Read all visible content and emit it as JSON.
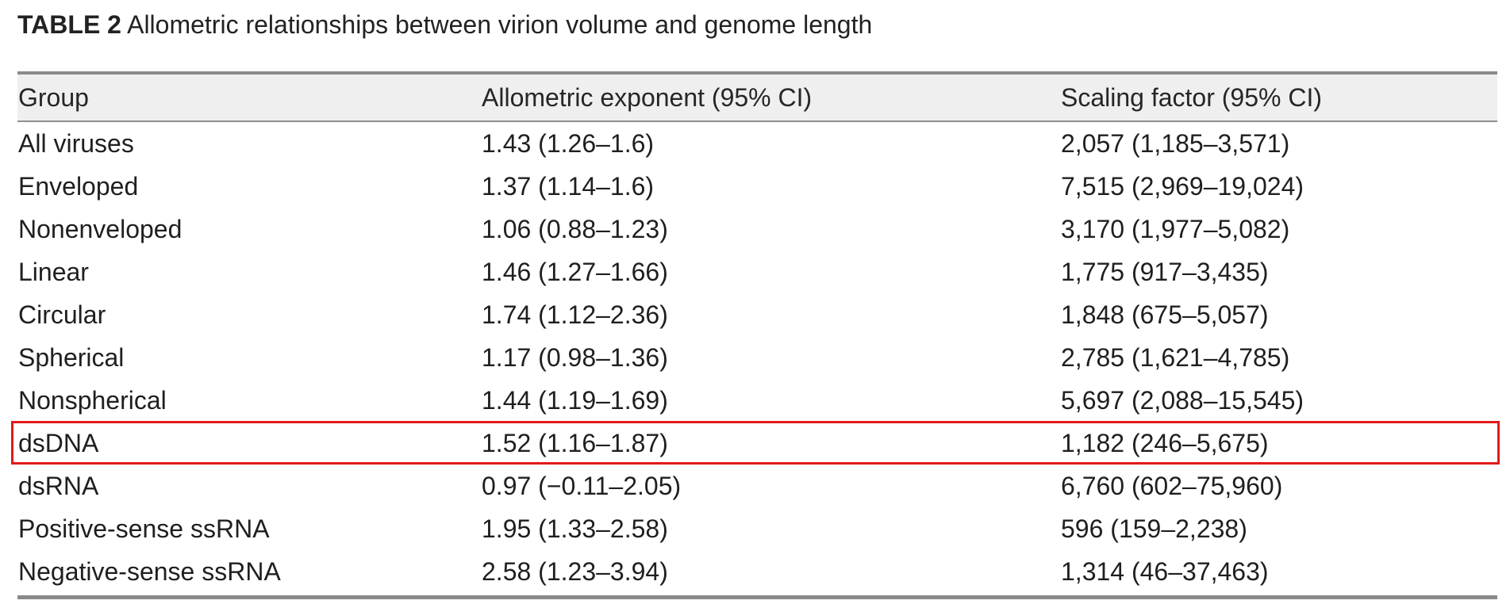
{
  "caption": {
    "label": "TABLE 2",
    "text": "Allometric relationships between virion volume and genome length"
  },
  "table": {
    "headers": [
      "Group",
      "Allometric exponent (95% CI)",
      "Scaling factor (95% CI)"
    ],
    "rows": [
      [
        "All viruses",
        "1.43 (1.26–1.6)",
        "2,057 (1,185–3,571)"
      ],
      [
        "Enveloped",
        "1.37 (1.14–1.6)",
        "7,515 (2,969–19,024)"
      ],
      [
        "Nonenveloped",
        "1.06 (0.88–1.23)",
        "3,170 (1,977–5,082)"
      ],
      [
        "Linear",
        "1.46 (1.27–1.66)",
        "1,775 (917–3,435)"
      ],
      [
        "Circular",
        "1.74 (1.12–2.36)",
        "1,848 (675–5,057)"
      ],
      [
        "Spherical",
        "1.17 (0.98–1.36)",
        "2,785 (1,621–4,785)"
      ],
      [
        "Nonspherical",
        "1.44 (1.19–1.69)",
        "5,697 (2,088–15,545)"
      ],
      [
        "dsDNA",
        "1.52 (1.16–1.87)",
        "1,182 (246–5,675)"
      ],
      [
        "dsRNA",
        "0.97 (−0.11–2.05)",
        "6,760 (602–75,960)"
      ],
      [
        "Positive-sense ssRNA",
        "1.95 (1.33–2.58)",
        "596 (159–2,238)"
      ],
      [
        "Negative-sense ssRNA",
        "2.58 (1.23–3.94)",
        "1,314 (46–37,463)"
      ]
    ],
    "highlighted_row": "dsDNA",
    "highlight_color": "#e01b1b"
  }
}
